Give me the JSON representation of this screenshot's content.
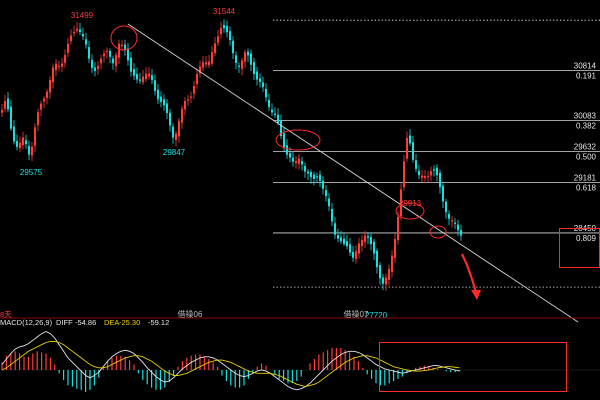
{
  "chart_data": [
    {
      "type": "candlestick",
      "title": "",
      "price_range": [
        27300,
        31750
      ],
      "colors": {
        "up": "#ff3b3b",
        "down": "#19e0e0",
        "trendline": "#d8d8d8",
        "fib_line": "#d8d8d8",
        "annotation": "#ff2a2a",
        "background": "#000000"
      },
      "price_labels_high": [
        {
          "text": "31499",
          "price": 31499
        },
        {
          "text": "31544",
          "price": 31544
        },
        {
          "text": "29913",
          "price": 29913
        }
      ],
      "price_labels_low": [
        {
          "text": "29575",
          "price": 29575
        },
        {
          "text": "29847",
          "price": 29847
        },
        {
          "text": "27720",
          "price": 27720
        }
      ],
      "fib_levels": [
        {
          "price_text": "",
          "ratio_text": "",
          "price": 31544
        },
        {
          "price_text": "30814",
          "ratio_text": "0.191",
          "price": 30814
        },
        {
          "price_text": "30083",
          "ratio_text": "0.382",
          "price": 30083
        },
        {
          "price_text": "29632",
          "ratio_text": "0.500",
          "price": 29632
        },
        {
          "price_text": "29181",
          "ratio_text": "0.618",
          "price": 29181
        },
        {
          "price_text": "28450",
          "ratio_text": "0.809",
          "price": 28450
        }
      ],
      "bottom_labels": [
        {
          "text": "借操06"
        },
        {
          "text": "借操07"
        }
      ]
    },
    {
      "type": "macd",
      "params_label": "MACD(12,26,9)",
      "diff_label": "DIFF",
      "diff_value": "-54.86",
      "dea_label": "DEA",
      "dea_value": "-25.30",
      "macd_value": "-59.12",
      "period_tag": "8天",
      "colors": {
        "diff": "#e8e8e8",
        "dea": "#e8d000",
        "hist_pos": "#ff3b3b",
        "hist_neg": "#19e0e0"
      },
      "diff": [
        10,
        20,
        30,
        38,
        42,
        44,
        48,
        54,
        60,
        66,
        70,
        66,
        58,
        46,
        34,
        22,
        14,
        6,
        -2,
        -10,
        -14,
        -10,
        -4,
        6,
        16,
        24,
        30,
        34,
        36,
        34,
        30,
        22,
        14,
        4,
        -4,
        -12,
        -18,
        -22,
        -20,
        -14,
        -6,
        2,
        8,
        14,
        18,
        22,
        24,
        24,
        22,
        18,
        12,
        6,
        0,
        -6,
        -10,
        -12,
        -10,
        -6,
        -2,
        0,
        -2,
        -6,
        -12,
        -18,
        -24,
        -30,
        -34,
        -36,
        -34,
        -30,
        -24,
        -16,
        -8,
        0,
        8,
        16,
        22,
        28,
        32,
        34,
        34,
        32,
        28,
        22,
        16,
        10,
        6,
        2,
        0,
        -2,
        -4,
        -6,
        -4,
        -2,
        0,
        2,
        4,
        6,
        8,
        8,
        6,
        4,
        2,
        0,
        -2
      ],
      "dea": [
        0,
        4,
        10,
        16,
        22,
        28,
        34,
        38,
        42,
        46,
        50,
        52,
        52,
        50,
        46,
        40,
        34,
        28,
        22,
        16,
        10,
        6,
        4,
        4,
        6,
        10,
        14,
        18,
        22,
        24,
        26,
        26,
        24,
        20,
        16,
        10,
        4,
        -2,
        -6,
        -10,
        -10,
        -8,
        -6,
        -2,
        2,
        6,
        10,
        14,
        16,
        18,
        18,
        16,
        14,
        10,
        6,
        2,
        -2,
        -4,
        -6,
        -6,
        -6,
        -6,
        -8,
        -10,
        -14,
        -18,
        -22,
        -26,
        -28,
        -30,
        -28,
        -26,
        -22,
        -16,
        -10,
        -4,
        2,
        8,
        14,
        18,
        22,
        24,
        26,
        26,
        24,
        22,
        18,
        14,
        10,
        6,
        4,
        2,
        0,
        -1,
        -2,
        -2,
        -1,
        0,
        2,
        4,
        5,
        6,
        6,
        5,
        4
      ],
      "hist": [
        14,
        26,
        30,
        34,
        30,
        24,
        24,
        30,
        34,
        32,
        30,
        22,
        10,
        -6,
        -18,
        -28,
        -30,
        -34,
        -36,
        -40,
        -36,
        -28,
        -14,
        4,
        16,
        22,
        26,
        26,
        24,
        18,
        10,
        -6,
        -18,
        -26,
        -32,
        -36,
        -36,
        -32,
        -22,
        -10,
        6,
        16,
        22,
        26,
        28,
        28,
        24,
        20,
        14,
        6,
        -10,
        -20,
        -28,
        -32,
        -32,
        -28,
        -16,
        -4,
        6,
        12,
        8,
        0,
        -8,
        -16,
        -20,
        -24,
        -24,
        -20,
        -12,
        0,
        12,
        20,
        28,
        32,
        36,
        40,
        40,
        40,
        36,
        32,
        24,
        16,
        4,
        -8,
        -16,
        -24,
        -28,
        -28,
        -24,
        -20,
        -16,
        -12,
        -6,
        0,
        4,
        6,
        8,
        6,
        4,
        2,
        0,
        -2,
        -4,
        -4,
        -2
      ]
    }
  ]
}
